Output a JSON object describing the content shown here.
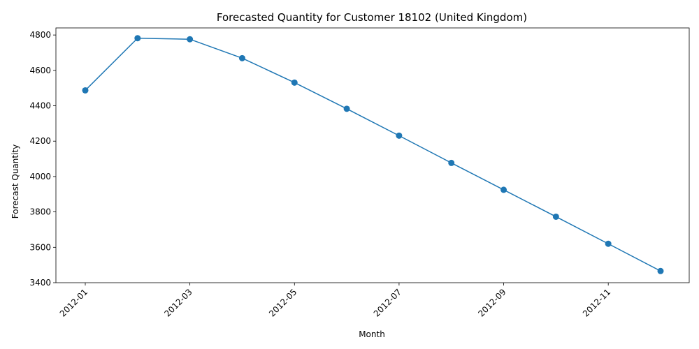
{
  "chart_data": {
    "type": "line",
    "title": "Forecasted Quantity for Customer 18102 (United Kingdom)",
    "xlabel": "Month",
    "ylabel": "Forecast Quantity",
    "x": [
      "2012-01",
      "2012-02",
      "2012-03",
      "2012-04",
      "2012-05",
      "2012-06",
      "2012-07",
      "2012-08",
      "2012-09",
      "2012-10",
      "2012-11",
      "2012-12"
    ],
    "x_ticks": [
      "2012-01",
      "2012-03",
      "2012-05",
      "2012-07",
      "2012-09",
      "2012-11"
    ],
    "y_ticks": [
      3400,
      3600,
      3800,
      4000,
      4200,
      4400,
      4600,
      4800
    ],
    "ylim": [
      3400,
      4840
    ],
    "series": [
      {
        "values": [
          4487,
          4782,
          4776,
          4669,
          4531,
          4383,
          4231,
          4077,
          3925,
          3773,
          3620,
          3466
        ]
      }
    ],
    "line_color": "#1f77b4",
    "grid": false,
    "legend": false,
    "marker": "circle"
  }
}
